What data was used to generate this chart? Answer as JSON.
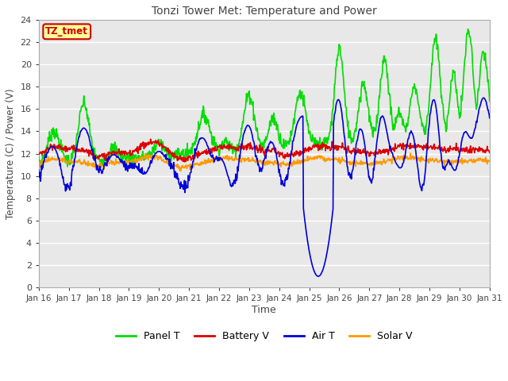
{
  "title": "Tonzi Tower Met: Temperature and Power",
  "xlabel": "Time",
  "ylabel": "Temperature (C) / Power (V)",
  "ylim": [
    0,
    24
  ],
  "yticks": [
    0,
    2,
    4,
    6,
    8,
    10,
    12,
    14,
    16,
    18,
    20,
    22,
    24
  ],
  "xtick_labels": [
    "Jan 16",
    "Jan 17",
    "Jan 18",
    "Jan 19",
    "Jan 20",
    "Jan 21",
    "Jan 22",
    "Jan 23",
    "Jan 24",
    "Jan 25",
    "Jan 26",
    "Jan 27",
    "Jan 28",
    "Jan 29",
    "Jan 30",
    "Jan 31"
  ],
  "n_points": 960,
  "bg_color": "#e8e8e8",
  "grid_color": "#ffffff",
  "legend_labels": [
    "Panel T",
    "Battery V",
    "Air T",
    "Solar V"
  ],
  "legend_colors": [
    "#00dd00",
    "#dd0000",
    "#0000dd",
    "#ff9900"
  ],
  "annotation_text": "TZ_tmet",
  "annotation_bg": "#ffff99",
  "annotation_border": "#cc0000",
  "title_color": "#444444",
  "label_color": "#444444",
  "tick_color": "#444444"
}
